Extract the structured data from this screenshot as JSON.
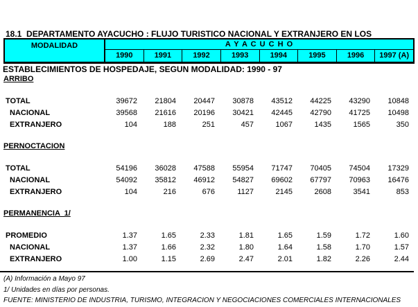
{
  "title": {
    "line1": "18.1  DEPARTAMENTO AYACUCHO : FLUJO TURISTICO NACIONAL Y EXTRANJERO EN LOS",
    "line2": "ESTABLECIMIENTOS DE HOSPEDAJE, SEGUN MODALIDAD: 1990 - 97"
  },
  "table": {
    "corner_label": "MODALIDAD",
    "region_label": "A Y A C U C H O",
    "years": [
      "1990",
      "1991",
      "1992",
      "1993",
      "1994",
      "1995",
      "1996",
      "1997 (A)"
    ],
    "sections": [
      {
        "name": "ARRIBO",
        "rows": [
          {
            "label": "TOTAL",
            "indent": false,
            "values": [
              "39672",
              "21804",
              "20447",
              "30878",
              "43512",
              "44225",
              "43290",
              "10848"
            ]
          },
          {
            "label": "NACIONAL",
            "indent": true,
            "values": [
              "39568",
              "21616",
              "20196",
              "30421",
              "42445",
              "42790",
              "41725",
              "10498"
            ]
          },
          {
            "label": "EXTRANJERO",
            "indent": true,
            "values": [
              "104",
              "188",
              "251",
              "457",
              "1067",
              "1435",
              "1565",
              "350"
            ]
          }
        ]
      },
      {
        "name": "PERNOCTACION",
        "rows": [
          {
            "label": "TOTAL",
            "indent": false,
            "values": [
              "54196",
              "36028",
              "47588",
              "55954",
              "71747",
              "70405",
              "74504",
              "17329"
            ]
          },
          {
            "label": "NACIONAL",
            "indent": true,
            "values": [
              "54092",
              "35812",
              "46912",
              "54827",
              "69602",
              "67797",
              "70963",
              "16476"
            ]
          },
          {
            "label": "EXTRANJERO",
            "indent": true,
            "values": [
              "104",
              "216",
              "676",
              "1127",
              "2145",
              "2608",
              "3541",
              "853"
            ]
          }
        ]
      },
      {
        "name": "PERMANENCIA  1/",
        "rows": [
          {
            "label": "PROMEDIO",
            "indent": false,
            "values": [
              "1.37",
              "1.65",
              "2.33",
              "1.81",
              "1.65",
              "1.59",
              "1.72",
              "1.60"
            ]
          },
          {
            "label": "NACIONAL",
            "indent": true,
            "values": [
              "1.37",
              "1.66",
              "2.32",
              "1.80",
              "1.64",
              "1.58",
              "1.70",
              "1.57"
            ]
          },
          {
            "label": "EXTRANJERO",
            "indent": true,
            "values": [
              "1.00",
              "1.15",
              "2.69",
              "2.47",
              "2.01",
              "1.82",
              "2.26",
              "2.44"
            ]
          }
        ]
      }
    ]
  },
  "footnotes": [
    "(A) Información a Mayo 97",
    "1/ Unidades en días por personas.",
    "FUENTE: MINISTERIO DE INDUSTRIA, TURISMO, INTEGRACION Y NEGOCIACIONES COMERCIALES INTERNACIONALES"
  ],
  "colors": {
    "header_bg": "#00FFFF",
    "border": "#000000",
    "text": "#000000"
  }
}
